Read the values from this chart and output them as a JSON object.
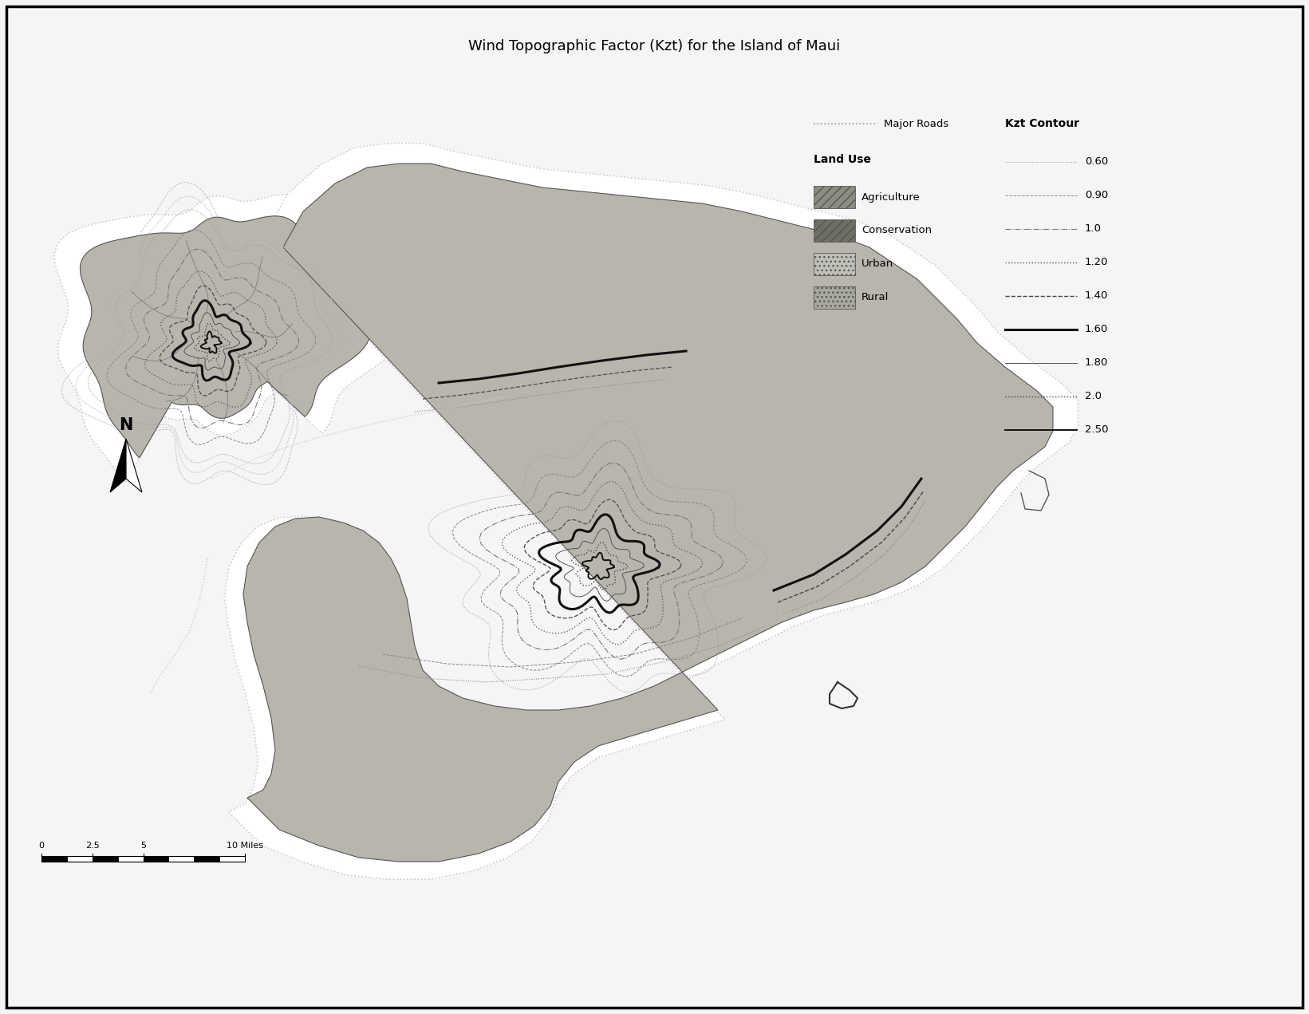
{
  "title": "Wind Topographic Factor (Kzt) for the Island of Maui",
  "title_fontsize": 13,
  "background_color": "#ffffff",
  "island_color": "#b8b5ad",
  "island_edge": "#555555",
  "coastline_color": "#cccccc",
  "legend": {
    "major_roads_label": "Major Roads",
    "kzt_contour_label": "Kzt Contour",
    "land_use_label": "Land Use",
    "land_use_items": [
      {
        "label": "Agriculture",
        "color": "#8c8c80",
        "hatch": "///"
      },
      {
        "label": "Conservation",
        "color": "#6e6e62",
        "hatch": "///"
      },
      {
        "label": "Urban",
        "color": "#c0bfb8",
        "hatch": "..."
      },
      {
        "label": "Rural",
        "color": "#a8a89e",
        "hatch": "..."
      }
    ],
    "kzt_contours": [
      {
        "value": "0.60",
        "ls": "dotted",
        "lw": 0.7,
        "color": "#999999"
      },
      {
        "value": "0.90",
        "ls": "dashed",
        "lw": 0.7,
        "color": "#888888"
      },
      {
        "value": "1.0",
        "ls": "dashdot",
        "lw": 0.8,
        "color": "#777777"
      },
      {
        "value": "1.20",
        "ls": "dotted",
        "lw": 1.0,
        "color": "#555555"
      },
      {
        "value": "1.40",
        "ls": "dashed",
        "lw": 1.0,
        "color": "#444444"
      },
      {
        "value": "1.60",
        "ls": "solid",
        "lw": 2.2,
        "color": "#111111"
      },
      {
        "value": "1.80",
        "ls": "solid",
        "lw": 0.7,
        "color": "#555555"
      },
      {
        "value": "2.0",
        "ls": "dotted",
        "lw": 1.0,
        "color": "#444444"
      },
      {
        "value": "2.50",
        "ls": "solid",
        "lw": 1.4,
        "color": "#111111"
      }
    ]
  }
}
